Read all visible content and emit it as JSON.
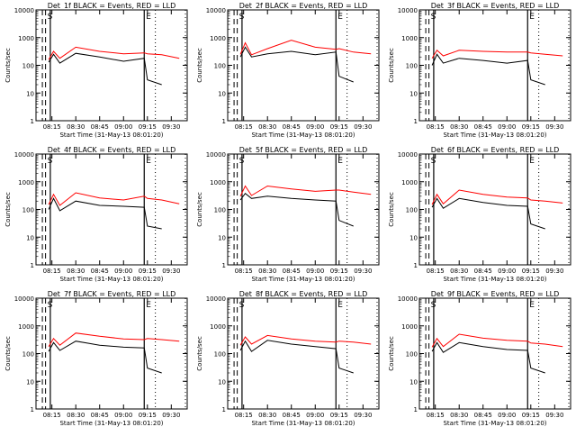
{
  "figure": {
    "xlabel": "Start Time (31-May-13 08:01:20)",
    "ylabel": "Counts/sec",
    "x_tick_labels": [
      "08:15",
      "08:30",
      "08:45",
      "09:00",
      "09:15",
      "09:30"
    ],
    "y_tick_labels": [
      "1",
      "10",
      "100",
      "1000",
      "10000"
    ],
    "event_markers": [
      "",
      "S",
      "",
      "E"
    ],
    "colors": {
      "events": "#000000",
      "lld": "#ff0000"
    }
  },
  "chart_data": [
    {
      "type": "line",
      "title": "Det_1f BLACK = Events, RED = LLD",
      "xlabel": "Start Time (31-May-13 08:01:20)",
      "ylabel": "Counts/sec",
      "y_scale": "log",
      "ylim": [
        1,
        10000
      ],
      "xlim": [
        "08:05",
        "09:40"
      ],
      "x": [
        "08:13",
        "08:16",
        "08:20",
        "08:30",
        "08:45",
        "09:00",
        "09:13",
        "09:15",
        "09:24",
        "09:35"
      ],
      "series": [
        {
          "name": "Events",
          "color": "#000000",
          "values": [
            130,
            250,
            120,
            270,
            200,
            140,
            180,
            30,
            20,
            null
          ]
        },
        {
          "name": "LLD",
          "color": "#ff0000",
          "values": [
            160,
            320,
            180,
            450,
            320,
            260,
            280,
            260,
            240,
            180
          ]
        }
      ]
    },
    {
      "type": "line",
      "title": "Det_2f BLACK = Events, RED = LLD",
      "xlabel": "Start Time (31-May-13 08:01:20)",
      "ylabel": "Counts/sec",
      "y_scale": "log",
      "ylim": [
        1,
        10000
      ],
      "xlim": [
        "08:05",
        "09:40"
      ],
      "x": [
        "08:13",
        "08:16",
        "08:20",
        "08:30",
        "08:45",
        "09:00",
        "09:13",
        "09:15",
        "09:24",
        "09:35"
      ],
      "series": [
        {
          "name": "Events",
          "color": "#000000",
          "values": [
            200,
            450,
            200,
            260,
            320,
            240,
            300,
            40,
            25,
            null
          ]
        },
        {
          "name": "LLD",
          "color": "#ff0000",
          "values": [
            250,
            650,
            240,
            400,
            800,
            450,
            380,
            400,
            300,
            260
          ]
        }
      ]
    },
    {
      "type": "line",
      "title": "Det_3f BLACK = Events, RED = LLD",
      "xlabel": "Start Time (31-May-13 08:01:20)",
      "ylabel": "Counts/sec",
      "y_scale": "log",
      "ylim": [
        1,
        10000
      ],
      "xlim": [
        "08:05",
        "09:40"
      ],
      "x": [
        "08:13",
        "08:16",
        "08:20",
        "08:30",
        "08:45",
        "09:00",
        "09:13",
        "09:15",
        "09:24",
        "09:35"
      ],
      "series": [
        {
          "name": "Events",
          "color": "#000000",
          "values": [
            100,
            250,
            120,
            180,
            150,
            120,
            150,
            30,
            20,
            null
          ]
        },
        {
          "name": "LLD",
          "color": "#ff0000",
          "values": [
            180,
            350,
            220,
            350,
            320,
            300,
            300,
            280,
            250,
            220
          ]
        }
      ]
    },
    {
      "type": "line",
      "title": "Det_4f BLACK = Events, RED = LLD",
      "xlabel": "Start Time (31-May-13 08:01:20)",
      "ylabel": "Counts/sec",
      "y_scale": "log",
      "ylim": [
        1,
        10000
      ],
      "xlim": [
        "08:05",
        "09:40"
      ],
      "x": [
        "08:13",
        "08:16",
        "08:20",
        "08:30",
        "08:45",
        "09:00",
        "09:13",
        "09:15",
        "09:24",
        "09:35"
      ],
      "series": [
        {
          "name": "Events",
          "color": "#000000",
          "values": [
            100,
            250,
            90,
            200,
            140,
            130,
            120,
            25,
            20,
            null
          ]
        },
        {
          "name": "LLD",
          "color": "#ff0000",
          "values": [
            150,
            350,
            140,
            400,
            260,
            220,
            300,
            250,
            220,
            160
          ]
        }
      ]
    },
    {
      "type": "line",
      "title": "Det_5f BLACK = Events, RED = LLD",
      "xlabel": "Start Time (31-May-13 08:01:20)",
      "ylabel": "Counts/sec",
      "y_scale": "log",
      "ylim": [
        1,
        10000
      ],
      "xlim": [
        "08:05",
        "09:40"
      ],
      "x": [
        "08:13",
        "08:16",
        "08:20",
        "08:30",
        "08:45",
        "09:00",
        "09:13",
        "09:15",
        "09:24",
        "09:35"
      ],
      "series": [
        {
          "name": "Events",
          "color": "#000000",
          "values": [
            220,
            380,
            250,
            300,
            250,
            220,
            200,
            40,
            25,
            null
          ]
        },
        {
          "name": "LLD",
          "color": "#ff0000",
          "values": [
            300,
            700,
            320,
            700,
            550,
            450,
            500,
            500,
            420,
            350
          ]
        }
      ]
    },
    {
      "type": "line",
      "title": "Det_6f BLACK = Events, RED = LLD",
      "xlabel": "Start Time (31-May-13 08:01:20)",
      "ylabel": "Counts/sec",
      "y_scale": "log",
      "ylim": [
        1,
        10000
      ],
      "xlim": [
        "08:05",
        "09:40"
      ],
      "x": [
        "08:13",
        "08:16",
        "08:20",
        "08:30",
        "08:45",
        "09:00",
        "09:13",
        "09:15",
        "09:24",
        "09:35"
      ],
      "series": [
        {
          "name": "Events",
          "color": "#000000",
          "values": [
            120,
            250,
            110,
            250,
            180,
            140,
            130,
            30,
            20,
            null
          ]
        },
        {
          "name": "LLD",
          "color": "#ff0000",
          "values": [
            150,
            350,
            160,
            500,
            350,
            280,
            260,
            220,
            200,
            170
          ]
        }
      ]
    },
    {
      "type": "line",
      "title": "Det_7f BLACK = Events, RED = LLD",
      "xlabel": "Start Time (31-May-13 08:01:20)",
      "ylabel": "Counts/sec",
      "y_scale": "log",
      "ylim": [
        1,
        10000
      ],
      "xlim": [
        "08:05",
        "09:40"
      ],
      "x": [
        "08:13",
        "08:16",
        "08:20",
        "08:30",
        "08:45",
        "09:00",
        "09:13",
        "09:15",
        "09:24",
        "09:35"
      ],
      "series": [
        {
          "name": "Events",
          "color": "#000000",
          "values": [
            120,
            250,
            130,
            280,
            200,
            170,
            160,
            30,
            20,
            null
          ]
        },
        {
          "name": "LLD",
          "color": "#ff0000",
          "values": [
            180,
            350,
            200,
            550,
            420,
            340,
            320,
            350,
            320,
            280
          ]
        }
      ]
    },
    {
      "type": "line",
      "title": "Det_8f BLACK = Events, RED = LLD",
      "xlabel": "Start Time (31-May-13 08:01:20)",
      "ylabel": "Counts/sec",
      "y_scale": "log",
      "ylim": [
        1,
        10000
      ],
      "xlim": [
        "08:05",
        "09:40"
      ],
      "x": [
        "08:13",
        "08:16",
        "08:20",
        "08:30",
        "08:45",
        "09:00",
        "09:13",
        "09:15",
        "09:24",
        "09:35"
      ],
      "series": [
        {
          "name": "Events",
          "color": "#000000",
          "values": [
            130,
            280,
            120,
            300,
            220,
            180,
            150,
            30,
            20,
            null
          ]
        },
        {
          "name": "LLD",
          "color": "#ff0000",
          "values": [
            200,
            400,
            220,
            450,
            340,
            280,
            260,
            280,
            260,
            220
          ]
        }
      ]
    },
    {
      "type": "line",
      "title": "Det_9f BLACK = Events, RED = LLD",
      "xlabel": "Start Time (31-May-13 08:01:20)",
      "ylabel": "Counts/sec",
      "y_scale": "log",
      "ylim": [
        1,
        10000
      ],
      "xlim": [
        "08:05",
        "09:40"
      ],
      "x": [
        "08:13",
        "08:16",
        "08:20",
        "08:30",
        "08:45",
        "09:00",
        "09:13",
        "09:15",
        "09:24",
        "09:35"
      ],
      "series": [
        {
          "name": "Events",
          "color": "#000000",
          "values": [
            120,
            250,
            110,
            250,
            180,
            140,
            130,
            30,
            20,
            null
          ]
        },
        {
          "name": "LLD",
          "color": "#ff0000",
          "values": [
            170,
            350,
            180,
            500,
            360,
            300,
            280,
            240,
            220,
            180
          ]
        }
      ]
    }
  ]
}
